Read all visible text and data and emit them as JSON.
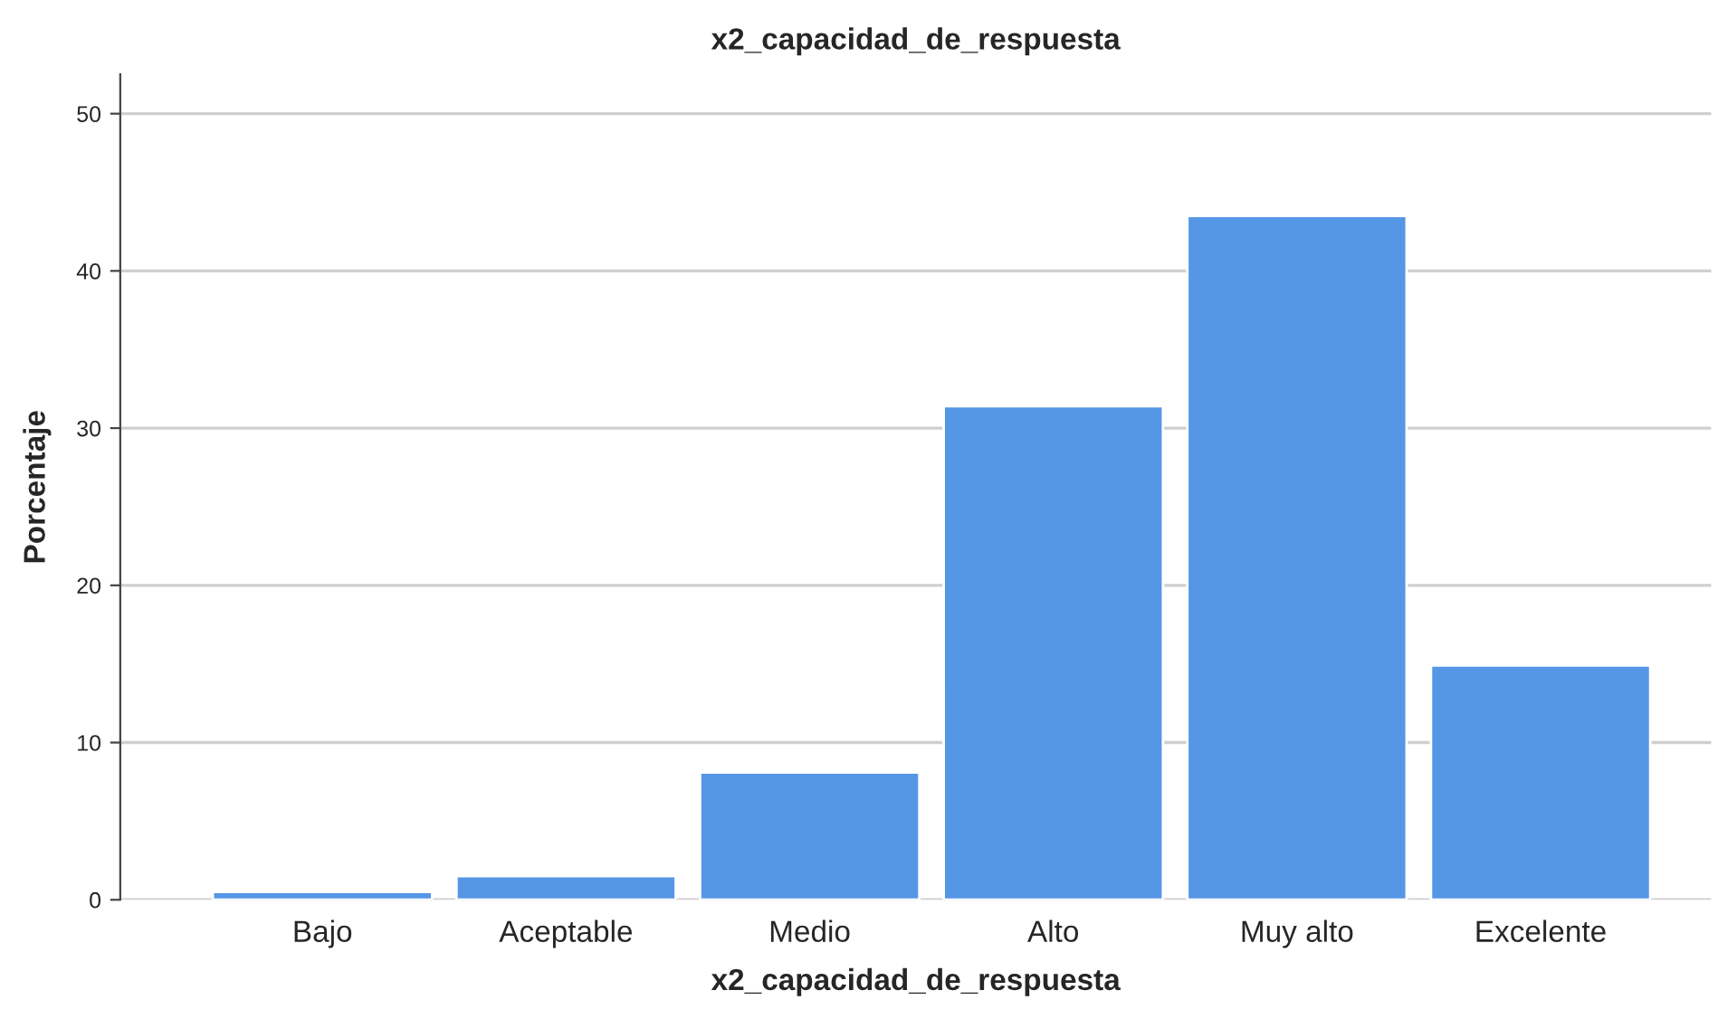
{
  "chart_data": {
    "type": "bar",
    "title": "x2_capacidad_de_respuesta",
    "xlabel": "x2_capacidad_de_respuesta",
    "ylabel": "Porcentaje",
    "categories": [
      "Bajo",
      "Aceptable",
      "Medio",
      "Alto",
      "Muy alto",
      "Excelente"
    ],
    "values": [
      0.5,
      1.5,
      8.1,
      31.4,
      43.5,
      14.9
    ],
    "color": "#5596e6",
    "ylim": [
      0,
      52.5
    ],
    "yticks": [
      0,
      10,
      20,
      30,
      40,
      50
    ],
    "grid": "y"
  }
}
